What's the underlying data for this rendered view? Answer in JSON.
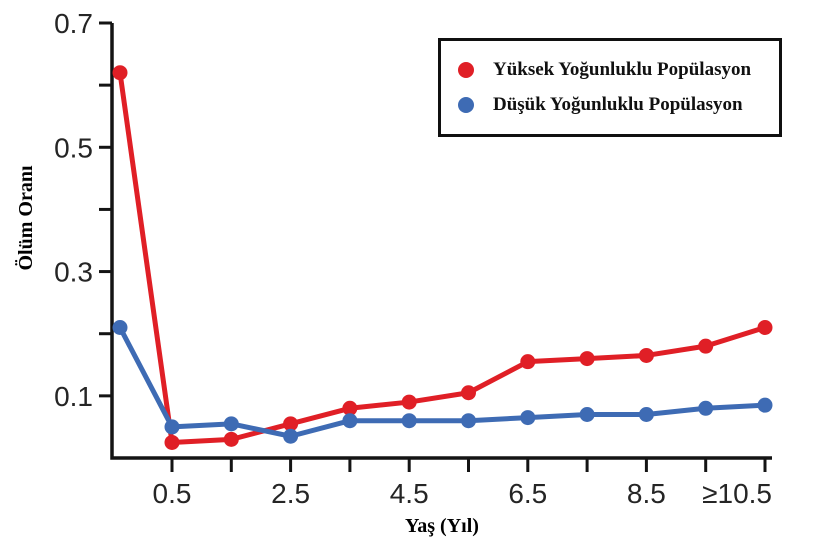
{
  "chart_data": {
    "type": "line",
    "title": "",
    "xlabel": "Yaş (Yıl)",
    "ylabel": "Ölüm Oranı",
    "x": [
      0,
      0.5,
      1.5,
      2.5,
      3.5,
      4.5,
      5.5,
      6.5,
      7.5,
      8.5,
      9.5,
      10.5
    ],
    "series": [
      {
        "name": "Yüksek Yoğunluklu Popülasyon",
        "color": "#e01f26",
        "values": [
          0.62,
          0.025,
          0.03,
          0.055,
          0.08,
          0.09,
          0.105,
          0.155,
          0.16,
          0.165,
          0.18,
          0.21
        ]
      },
      {
        "name": "Düşük Yoğunluklu Popülasyon",
        "color": "#3e6bb4",
        "values": [
          0.21,
          0.05,
          0.055,
          0.035,
          0.06,
          0.06,
          0.06,
          0.065,
          0.07,
          0.07,
          0.08,
          0.085
        ]
      }
    ],
    "ylim": [
      0,
      0.7
    ],
    "y_major_ticks": [
      0.1,
      0.3,
      0.5,
      0.7
    ],
    "y_minor_ticks": [
      0.2,
      0.4,
      0.6
    ],
    "x_major_ticks": [
      0.5,
      2.5,
      4.5,
      6.5,
      8.5,
      10.5
    ],
    "x_tick_labels": [
      "0.5",
      "2.5",
      "4.5",
      "6.5",
      "8.5",
      "≥10.5"
    ],
    "x_minor_ticks": [
      1.5,
      3.5,
      5.5,
      7.5,
      9.5
    ],
    "grid": false,
    "marker": "circle",
    "legend": {
      "position": "top-right",
      "border_color": "#101010"
    },
    "layout": {
      "first_point_at_axis": true
    }
  }
}
